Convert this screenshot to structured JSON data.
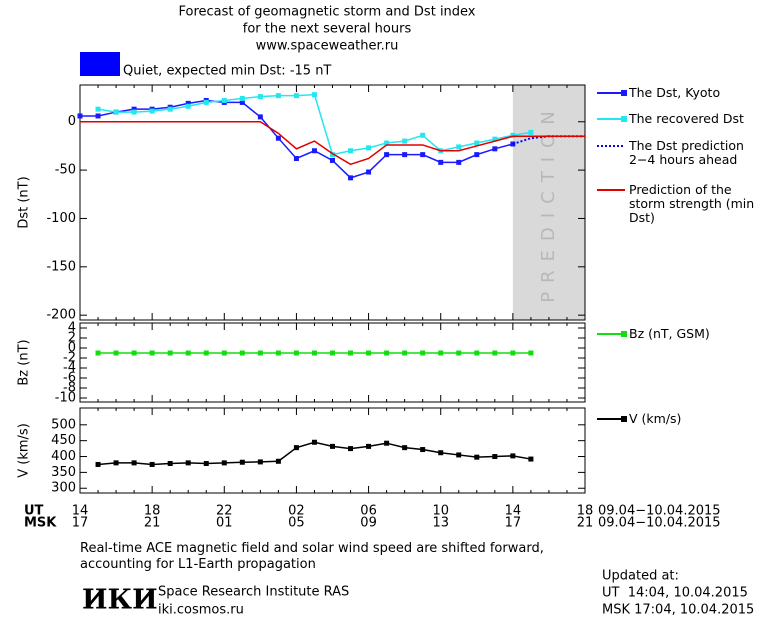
{
  "header": {
    "lines": [
      "Forecast of geomagnetic storm and Dst index",
      "for the next several hours",
      "www.spaceweather.ru"
    ],
    "status": "Quiet, expected min Dst: -15 nT",
    "status_color": "#0000ff"
  },
  "chart_data": [
    {
      "type": "line",
      "ylabel": "Dst (nT)",
      "ylim": [
        -205,
        38
      ],
      "yticks": [
        0,
        -50,
        -100,
        -150,
        -200
      ],
      "prediction_label": "PREDICTION",
      "series": [
        {
          "name": "The Dst, Kyoto",
          "color": "#1a1aff",
          "marker": "square",
          "style": "solid",
          "values": [
            6,
            6,
            10,
            13,
            13,
            15,
            19,
            22,
            20,
            20,
            5,
            -17,
            -38,
            -30,
            -40,
            -58,
            -52,
            -34,
            -34,
            -34,
            -42,
            -42,
            -34,
            -28,
            -23,
            null,
            null,
            null,
            null
          ]
        },
        {
          "name": "The recovered Dst",
          "color": "#22e6f0",
          "marker": "square",
          "style": "solid",
          "values": [
            null,
            13,
            10,
            10,
            11,
            13,
            16,
            20,
            22,
            24,
            26,
            27,
            27,
            28,
            -34,
            -30,
            -27,
            -22,
            -20,
            -14,
            -30,
            -26,
            -22,
            -18,
            -14,
            -11,
            null,
            null,
            null
          ]
        },
        {
          "name": "The Dst prediction 2−4 hours ahead",
          "color": "#0000ff",
          "marker": "none",
          "style": "dotted",
          "values": [
            null,
            null,
            null,
            null,
            null,
            null,
            null,
            null,
            null,
            null,
            null,
            null,
            null,
            null,
            null,
            null,
            null,
            null,
            null,
            null,
            null,
            null,
            null,
            null,
            -23,
            -17,
            -15,
            -15,
            -15
          ]
        },
        {
          "name": "Prediction of the storm strength (min Dst)",
          "color": "#e00000",
          "marker": "none",
          "style": "solid",
          "values": [
            0,
            0,
            0,
            0,
            0,
            0,
            0,
            0,
            0,
            0,
            0,
            -12,
            -28,
            -20,
            -33,
            -44,
            -38,
            -24,
            -24,
            -24,
            -30,
            -30,
            -25,
            -20,
            -15,
            -15,
            -15,
            -15,
            -15
          ]
        }
      ]
    },
    {
      "type": "line",
      "ylabel": "Bz (nT)",
      "ylim": [
        -10.8,
        5
      ],
      "yticks": [
        4,
        2,
        0,
        -2,
        -4,
        -6,
        -8,
        -10
      ],
      "series": [
        {
          "name": "Bz (nT, GSM)",
          "color": "#11dd11",
          "marker": "square",
          "style": "solid",
          "values": [
            null,
            -1,
            -1,
            -1,
            -1,
            -1,
            -1,
            -1,
            -1,
            -1,
            -1,
            -1,
            -1,
            -1,
            -1,
            -1,
            -1,
            -1,
            -1,
            -1,
            -1,
            -1,
            -1,
            -1,
            -1,
            -1,
            null,
            null,
            null
          ]
        }
      ]
    },
    {
      "type": "line",
      "ylabel": "V (km/s)",
      "ylim": [
        285,
        553
      ],
      "yticks": [
        300,
        350,
        400,
        450,
        500
      ],
      "xlabel_ut": "UT",
      "xlabel_msk": "MSK",
      "categories": [
        "14",
        null,
        null,
        null,
        "18",
        null,
        null,
        null,
        "22",
        null,
        null,
        null,
        "02",
        null,
        null,
        null,
        "06",
        null,
        null,
        null,
        "10",
        null,
        null,
        null,
        "14",
        null,
        null,
        null,
        "18"
      ],
      "categories_msk": [
        "17",
        null,
        null,
        null,
        "21",
        null,
        null,
        null,
        "01",
        null,
        null,
        null,
        "05",
        null,
        null,
        null,
        "09",
        null,
        null,
        null,
        "13",
        null,
        null,
        null,
        "17",
        null,
        null,
        null,
        "21"
      ],
      "range_ut": "09.04−10.04.2015",
      "range_msk": "09.04−10.04.2015",
      "series": [
        {
          "name": "V (km/s)",
          "color": "#000000",
          "marker": "square",
          "style": "solid",
          "values": [
            null,
            375,
            380,
            380,
            375,
            378,
            380,
            378,
            380,
            382,
            383,
            385,
            428,
            445,
            432,
            425,
            432,
            442,
            428,
            422,
            412,
            405,
            398,
            400,
            402,
            392,
            null,
            null,
            null
          ]
        }
      ]
    }
  ],
  "footer": {
    "caption": "Real-time ACE magnetic field and solar wind speed are shifted forward, accounting for L1-Earth propagation",
    "logo": "ИКИ",
    "institute": "Space Research Institute RAS",
    "url": "iki.cosmos.ru",
    "updated": [
      "Updated at:",
      "UT  14:04, 10.04.2015",
      "MSK 17:04, 10.04.2015"
    ]
  }
}
